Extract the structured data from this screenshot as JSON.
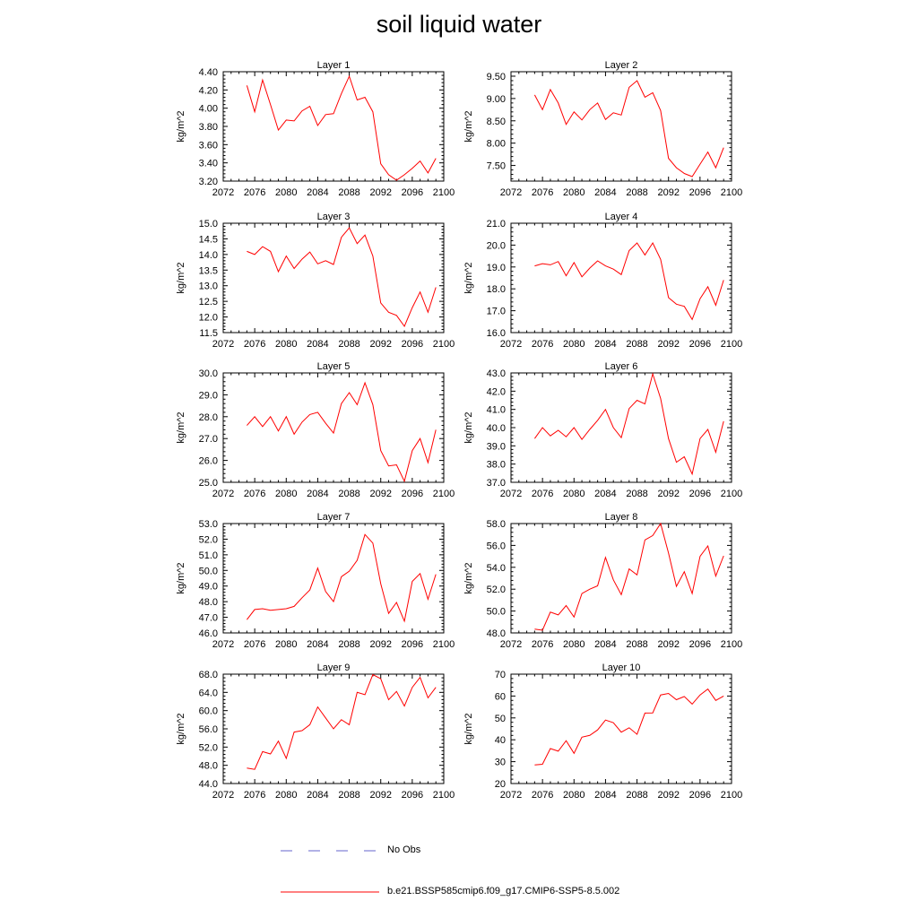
{
  "page": {
    "title": "soil liquid water"
  },
  "legend": {
    "items": [
      {
        "label": "No Obs",
        "color": "#6666cc",
        "style": "dashed"
      },
      {
        "label": "b.e21.BSSP585cmip6.f09_g17.CMIP6-SSP5-8.5.002",
        "color": "#ff0000",
        "style": "solid"
      }
    ]
  },
  "chart_data": [
    {
      "type": "line",
      "title": "Layer 1",
      "xlabel": "",
      "ylabel": "kg/m^2",
      "xlim": [
        2072,
        2100
      ],
      "xticks": [
        "2072",
        "2076",
        "2080",
        "2084",
        "2088",
        "2092",
        "2096",
        "2100"
      ],
      "ylim": [
        3.2,
        4.4
      ],
      "yticks": [
        "3.20",
        "3.40",
        "3.60",
        "3.80",
        "4.00",
        "4.20",
        "4.40"
      ],
      "x": [
        2075,
        2076,
        2077,
        2078,
        2079,
        2080,
        2081,
        2082,
        2083,
        2084,
        2085,
        2086,
        2087,
        2088,
        2089,
        2090,
        2091,
        2092,
        2093,
        2094,
        2095,
        2096,
        2097,
        2098,
        2099
      ],
      "series": [
        {
          "name": "b.e21.BSSP585cmip6.f09_g17.CMIP6-SSP5-8.5.002",
          "color": "#ff0000",
          "values": [
            4.25,
            3.96,
            4.31,
            4.04,
            3.76,
            3.87,
            3.86,
            3.97,
            4.02,
            3.81,
            3.93,
            3.94,
            4.16,
            4.35,
            4.09,
            4.12,
            3.96,
            3.39,
            3.27,
            3.21,
            3.27,
            3.34,
            3.42,
            3.29,
            3.45
          ]
        }
      ]
    },
    {
      "type": "line",
      "title": "Layer 2",
      "xlabel": "",
      "ylabel": "kg/m^2",
      "xlim": [
        2072,
        2100
      ],
      "xticks": [
        "2072",
        "2076",
        "2080",
        "2084",
        "2088",
        "2092",
        "2096",
        "2100"
      ],
      "ylim": [
        7.15,
        9.6
      ],
      "yticks": [
        "7.50",
        "8.00",
        "8.50",
        "9.00",
        "9.50"
      ],
      "x": [
        2075,
        2076,
        2077,
        2078,
        2079,
        2080,
        2081,
        2082,
        2083,
        2084,
        2085,
        2086,
        2087,
        2088,
        2089,
        2090,
        2091,
        2092,
        2093,
        2094,
        2095,
        2096,
        2097,
        2098,
        2099
      ],
      "series": [
        {
          "name": "b.e21.BSSP585cmip6.f09_g17.CMIP6-SSP5-8.5.002",
          "color": "#ff0000",
          "values": [
            9.08,
            8.75,
            9.2,
            8.9,
            8.42,
            8.7,
            8.52,
            8.75,
            8.9,
            8.53,
            8.68,
            8.63,
            9.25,
            9.4,
            9.03,
            9.13,
            8.73,
            7.66,
            7.45,
            7.32,
            7.25,
            7.53,
            7.8,
            7.45,
            7.9
          ]
        }
      ]
    },
    {
      "type": "line",
      "title": "Layer 3",
      "xlabel": "",
      "ylabel": "kg/m^2",
      "xlim": [
        2072,
        2100
      ],
      "xticks": [
        "2072",
        "2076",
        "2080",
        "2084",
        "2088",
        "2092",
        "2096",
        "2100"
      ],
      "ylim": [
        11.5,
        15.0
      ],
      "yticks": [
        "11.5",
        "12.0",
        "12.5",
        "13.0",
        "13.5",
        "14.0",
        "14.5",
        "15.0"
      ],
      "x": [
        2075,
        2076,
        2077,
        2078,
        2079,
        2080,
        2081,
        2082,
        2083,
        2084,
        2085,
        2086,
        2087,
        2088,
        2089,
        2090,
        2091,
        2092,
        2093,
        2094,
        2095,
        2096,
        2097,
        2098,
        2099
      ],
      "series": [
        {
          "name": "b.e21.BSSP585cmip6.f09_g17.CMIP6-SSP5-8.5.002",
          "color": "#ff0000",
          "values": [
            14.1,
            14.0,
            14.25,
            14.1,
            13.45,
            13.95,
            13.55,
            13.85,
            14.08,
            13.7,
            13.8,
            13.68,
            14.55,
            14.85,
            14.35,
            14.62,
            13.95,
            12.45,
            12.15,
            12.05,
            11.7,
            12.3,
            12.8,
            12.15,
            12.95
          ]
        }
      ]
    },
    {
      "type": "line",
      "title": "Layer 4",
      "xlabel": "",
      "ylabel": "kg/m^2",
      "xlim": [
        2072,
        2100
      ],
      "xticks": [
        "2072",
        "2076",
        "2080",
        "2084",
        "2088",
        "2092",
        "2096",
        "2100"
      ],
      "ylim": [
        16.0,
        21.0
      ],
      "yticks": [
        "16.0",
        "17.0",
        "18.0",
        "19.0",
        "20.0",
        "21.0"
      ],
      "x": [
        2075,
        2076,
        2077,
        2078,
        2079,
        2080,
        2081,
        2082,
        2083,
        2084,
        2085,
        2086,
        2087,
        2088,
        2089,
        2090,
        2091,
        2092,
        2093,
        2094,
        2095,
        2096,
        2097,
        2098,
        2099
      ],
      "series": [
        {
          "name": "b.e21.BSSP585cmip6.f09_g17.CMIP6-SSP5-8.5.002",
          "color": "#ff0000",
          "values": [
            19.05,
            19.15,
            19.1,
            19.25,
            18.6,
            19.2,
            18.55,
            18.95,
            19.28,
            19.05,
            18.9,
            18.65,
            19.75,
            20.1,
            19.55,
            20.1,
            19.35,
            17.6,
            17.3,
            17.2,
            16.6,
            17.55,
            18.1,
            17.25,
            18.4
          ]
        }
      ]
    },
    {
      "type": "line",
      "title": "Layer 5",
      "xlabel": "",
      "ylabel": "kg/m^2",
      "xlim": [
        2072,
        2100
      ],
      "xticks": [
        "2072",
        "2076",
        "2080",
        "2084",
        "2088",
        "2092",
        "2096",
        "2100"
      ],
      "ylim": [
        25.0,
        30.0
      ],
      "yticks": [
        "25.0",
        "26.0",
        "27.0",
        "28.0",
        "29.0",
        "30.0"
      ],
      "x": [
        2075,
        2076,
        2077,
        2078,
        2079,
        2080,
        2081,
        2082,
        2083,
        2084,
        2085,
        2086,
        2087,
        2088,
        2089,
        2090,
        2091,
        2092,
        2093,
        2094,
        2095,
        2096,
        2097,
        2098,
        2099
      ],
      "series": [
        {
          "name": "b.e21.BSSP585cmip6.f09_g17.CMIP6-SSP5-8.5.002",
          "color": "#ff0000",
          "values": [
            27.6,
            28.0,
            27.55,
            28.0,
            27.35,
            28.0,
            27.2,
            27.75,
            28.1,
            28.2,
            27.7,
            27.25,
            28.6,
            29.1,
            28.55,
            29.55,
            28.55,
            26.45,
            25.75,
            25.8,
            25.05,
            26.45,
            27.0,
            25.9,
            27.4
          ]
        }
      ]
    },
    {
      "type": "line",
      "title": "Layer 6",
      "xlabel": "",
      "ylabel": "kg/m^2",
      "xlim": [
        2072,
        2100
      ],
      "xticks": [
        "2072",
        "2076",
        "2080",
        "2084",
        "2088",
        "2092",
        "2096",
        "2100"
      ],
      "ylim": [
        37.0,
        43.0
      ],
      "yticks": [
        "37.0",
        "38.0",
        "39.0",
        "40.0",
        "41.0",
        "42.0",
        "43.0"
      ],
      "x": [
        2075,
        2076,
        2077,
        2078,
        2079,
        2080,
        2081,
        2082,
        2083,
        2084,
        2085,
        2086,
        2087,
        2088,
        2089,
        2090,
        2091,
        2092,
        2093,
        2094,
        2095,
        2096,
        2097,
        2098,
        2099
      ],
      "series": [
        {
          "name": "b.e21.BSSP585cmip6.f09_g17.CMIP6-SSP5-8.5.002",
          "color": "#ff0000",
          "values": [
            39.4,
            40.0,
            39.55,
            39.85,
            39.5,
            40.0,
            39.35,
            39.9,
            40.4,
            41.0,
            40.0,
            39.45,
            41.05,
            41.5,
            41.3,
            42.95,
            41.6,
            39.4,
            38.1,
            38.4,
            37.45,
            39.4,
            39.9,
            38.65,
            40.35
          ]
        }
      ]
    },
    {
      "type": "line",
      "title": "Layer 7",
      "xlabel": "",
      "ylabel": "kg/m^2",
      "xlim": [
        2072,
        2100
      ],
      "xticks": [
        "2072",
        "2076",
        "2080",
        "2084",
        "2088",
        "2092",
        "2096",
        "2100"
      ],
      "ylim": [
        46.0,
        53.0
      ],
      "yticks": [
        "46.0",
        "47.0",
        "48.0",
        "49.0",
        "50.0",
        "51.0",
        "52.0",
        "53.0"
      ],
      "x": [
        2075,
        2076,
        2077,
        2078,
        2079,
        2080,
        2081,
        2082,
        2083,
        2084,
        2085,
        2086,
        2087,
        2088,
        2089,
        2090,
        2091,
        2092,
        2093,
        2094,
        2095,
        2096,
        2097,
        2098,
        2099
      ],
      "series": [
        {
          "name": "b.e21.BSSP585cmip6.f09_g17.CMIP6-SSP5-8.5.002",
          "color": "#ff0000",
          "values": [
            46.85,
            47.5,
            47.55,
            47.45,
            47.5,
            47.55,
            47.7,
            48.25,
            48.75,
            50.15,
            48.65,
            48.0,
            49.6,
            49.95,
            50.65,
            52.3,
            51.75,
            49.15,
            47.25,
            47.95,
            46.75,
            49.3,
            49.8,
            48.15,
            49.75
          ]
        }
      ]
    },
    {
      "type": "line",
      "title": "Layer 8",
      "xlabel": "",
      "ylabel": "kg/m^2",
      "xlim": [
        2072,
        2100
      ],
      "xticks": [
        "2072",
        "2076",
        "2080",
        "2084",
        "2088",
        "2092",
        "2096",
        "2100"
      ],
      "ylim": [
        48.0,
        58.0
      ],
      "yticks": [
        "48.0",
        "50.0",
        "52.0",
        "54.0",
        "56.0",
        "58.0"
      ],
      "x": [
        2075,
        2076,
        2077,
        2078,
        2079,
        2080,
        2081,
        2082,
        2083,
        2084,
        2085,
        2086,
        2087,
        2088,
        2089,
        2090,
        2091,
        2092,
        2093,
        2094,
        2095,
        2096,
        2097,
        2098,
        2099
      ],
      "series": [
        {
          "name": "b.e21.BSSP585cmip6.f09_g17.CMIP6-SSP5-8.5.002",
          "color": "#ff0000",
          "values": [
            48.35,
            48.25,
            49.9,
            49.65,
            50.5,
            49.45,
            51.6,
            52.0,
            52.3,
            54.9,
            52.85,
            51.5,
            53.85,
            53.3,
            56.5,
            56.9,
            58.0,
            55.3,
            52.25,
            53.6,
            51.6,
            55.0,
            55.95,
            53.2,
            55.05
          ]
        }
      ]
    },
    {
      "type": "line",
      "title": "Layer 9",
      "xlabel": "",
      "ylabel": "kg/m^2",
      "xlim": [
        2072,
        2100
      ],
      "xticks": [
        "2072",
        "2076",
        "2080",
        "2084",
        "2088",
        "2092",
        "2096",
        "2100"
      ],
      "ylim": [
        44.0,
        68.0
      ],
      "yticks": [
        "44.0",
        "48.0",
        "52.0",
        "56.0",
        "60.0",
        "64.0",
        "68.0"
      ],
      "x": [
        2075,
        2076,
        2077,
        2078,
        2079,
        2080,
        2081,
        2082,
        2083,
        2084,
        2085,
        2086,
        2087,
        2088,
        2089,
        2090,
        2091,
        2092,
        2093,
        2094,
        2095,
        2096,
        2097,
        2098,
        2099
      ],
      "series": [
        {
          "name": "b.e21.BSSP585cmip6.f09_g17.CMIP6-SSP5-8.5.002",
          "color": "#ff0000",
          "values": [
            47.4,
            47.1,
            51.0,
            50.5,
            53.3,
            49.5,
            55.3,
            55.6,
            56.9,
            60.8,
            58.4,
            56.0,
            58.0,
            56.9,
            64.0,
            63.5,
            67.9,
            67.0,
            62.4,
            64.2,
            61.0,
            65.1,
            67.3,
            62.8,
            65.1
          ]
        }
      ]
    },
    {
      "type": "line",
      "title": "Layer 10",
      "xlabel": "",
      "ylabel": "kg/m^2",
      "xlim": [
        2072,
        2100
      ],
      "xticks": [
        "2072",
        "2076",
        "2080",
        "2084",
        "2088",
        "2092",
        "2096",
        "2100"
      ],
      "ylim": [
        20,
        70
      ],
      "yticks": [
        "20",
        "30",
        "40",
        "50",
        "60",
        "70"
      ],
      "x": [
        2075,
        2076,
        2077,
        2078,
        2079,
        2080,
        2081,
        2082,
        2083,
        2084,
        2085,
        2086,
        2087,
        2088,
        2089,
        2090,
        2091,
        2092,
        2093,
        2094,
        2095,
        2096,
        2097,
        2098,
        2099
      ],
      "series": [
        {
          "name": "b.e21.BSSP585cmip6.f09_g17.CMIP6-SSP5-8.5.002",
          "color": "#ff0000",
          "values": [
            28.5,
            28.8,
            36.0,
            34.8,
            39.6,
            33.8,
            41.2,
            42.0,
            44.5,
            49.0,
            47.8,
            43.5,
            45.5,
            42.5,
            52.2,
            52.3,
            60.5,
            61.2,
            58.3,
            59.8,
            56.3,
            60.5,
            63.2,
            58.0,
            60.0
          ]
        }
      ]
    }
  ]
}
